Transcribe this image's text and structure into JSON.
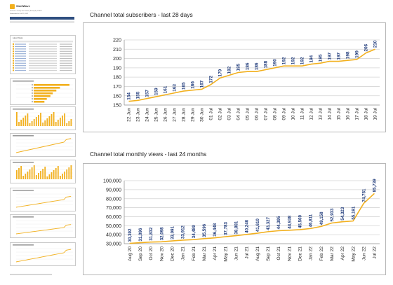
{
  "left_column": {
    "logo_text": "SimilWave",
    "header_line1": "Channel: 'Cramp the Gamer' (Example) 7/2022",
    "header_line2": "Generated on Jul 22, 2022",
    "table_title": "Latest Videos",
    "colors": {
      "nav": "#2f4f80",
      "bar": "#f2b01e",
      "line": "#f2b01e"
    }
  },
  "chart1": {
    "title": "Channel total subscribers - last 28 days",
    "chart_data": {
      "type": "line",
      "x": [
        "22 Jun",
        "23 Jun",
        "24 Jun",
        "25 Jun",
        "26 Jun",
        "27 Jun",
        "28 Jun",
        "29 Jun",
        "30 Jun",
        "01 Jul",
        "02 Jul",
        "03 Jul",
        "04 Jul",
        "05 Jul",
        "06 Jul",
        "07 Jul",
        "08 Jul",
        "09 Jul",
        "10 Jul",
        "11 Jul",
        "12 Jul",
        "13 Jul",
        "14 Jul",
        "15 Jul",
        "16 Jul",
        "17 Jul",
        "18 Jul",
        "19 Jul"
      ],
      "values": [
        154,
        155,
        157,
        159,
        161,
        163,
        165,
        166,
        167,
        172,
        179,
        182,
        185,
        186,
        186,
        188,
        190,
        192,
        192,
        192,
        194,
        195,
        197,
        197,
        198,
        199,
        206,
        210
      ],
      "yticks": [
        150,
        160,
        170,
        180,
        190,
        200,
        210,
        220
      ],
      "ylim": [
        150,
        220
      ],
      "grid": true,
      "line_color": "#f2b01e",
      "label_color": "#1f3a7a"
    }
  },
  "chart2": {
    "title": "Channel total monthly views - last 24 months",
    "chart_data": {
      "type": "line",
      "x": [
        "Aug 20",
        "Sep 20",
        "Oct 20",
        "Nov 20",
        "Dec 20",
        "Jan 21",
        "Feb 21",
        "Mar 21",
        "Apr 21",
        "May 21",
        "Jun 21",
        "Jul 21",
        "Aug 21",
        "Sep 21",
        "Oct 21",
        "Nov 21",
        "Dec 21",
        "Jan 22",
        "Feb 22",
        "Mar 22",
        "Apr 22",
        "May 22",
        "Jun 22",
        "Jul 22"
      ],
      "values": [
        30392,
        31096,
        31832,
        32098,
        33091,
        33912,
        34489,
        35596,
        36448,
        37783,
        38881,
        40246,
        41610,
        43327,
        44395,
        44938,
        45569,
        46811,
        49158,
        52933,
        54323,
        55191,
        74761,
        85739
      ],
      "labels": [
        "30,392",
        "31,096",
        "31,832",
        "32,098",
        "33,091",
        "33,912",
        "34,489",
        "35,596",
        "36,448",
        "37,783",
        "38,881",
        "40,246",
        "41,610",
        "43,327",
        "44,395",
        "44,938",
        "45,569",
        "46,811",
        "49,158",
        "52,933",
        "54,323",
        "55,191",
        "74,761",
        "85,739"
      ],
      "yticks": [
        30000,
        40000,
        50000,
        60000,
        70000,
        80000,
        90000,
        100000
      ],
      "ytick_labels": [
        "30,000",
        "40,000",
        "50,000",
        "60,000",
        "70,000",
        "80,000",
        "90,000",
        "100,000"
      ],
      "ylim": [
        30000,
        100000
      ],
      "grid": true,
      "line_color": "#f2b01e",
      "label_color": "#1f3a7a"
    }
  }
}
